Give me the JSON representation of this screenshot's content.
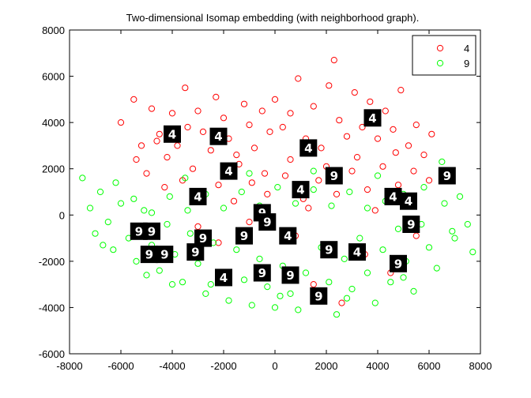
{
  "colors": {
    "series_4": "#ff0000",
    "series_9": "#00ff00",
    "thumbnail_bg": "#000000",
    "thumbnail_digit": "#ffffff",
    "axis": "#000000",
    "background": "#ffffff"
  },
  "chart_data": {
    "type": "scatter",
    "title": "Two-dimensional Isomap embedding (with neighborhood graph).",
    "xlabel": "",
    "ylabel": "",
    "xlim": [
      -8000,
      8000
    ],
    "ylim": [
      -6000,
      8000
    ],
    "grid": false,
    "legend_position": "top-right",
    "marker": "open-circle",
    "xticks": [
      -8000,
      -6000,
      -4000,
      -2000,
      0,
      2000,
      4000,
      6000,
      8000
    ],
    "yticks": [
      -6000,
      -4000,
      -2000,
      0,
      2000,
      4000,
      6000,
      8000
    ],
    "legend": [
      "4",
      "9"
    ],
    "series": [
      {
        "name": "4",
        "color": "#ff0000",
        "points": [
          [
            -6000,
            4000
          ],
          [
            -5500,
            5000
          ],
          [
            -5200,
            3000
          ],
          [
            -4800,
            4600
          ],
          [
            -4500,
            3500
          ],
          [
            -4200,
            2500
          ],
          [
            -4000,
            4400
          ],
          [
            -3800,
            3000
          ],
          [
            -3500,
            5500
          ],
          [
            -3200,
            2000
          ],
          [
            -3000,
            4500
          ],
          [
            -2800,
            3600
          ],
          [
            -2500,
            2800
          ],
          [
            -2300,
            5100
          ],
          [
            -2000,
            4200
          ],
          [
            -1800,
            3300
          ],
          [
            -1500,
            2600
          ],
          [
            -1200,
            4800
          ],
          [
            -1000,
            3900
          ],
          [
            -800,
            2900
          ],
          [
            -500,
            4500
          ],
          [
            -200,
            3600
          ],
          [
            0,
            5000
          ],
          [
            300,
            3800
          ],
          [
            600,
            4400
          ],
          [
            900,
            5900
          ],
          [
            1200,
            3300
          ],
          [
            1500,
            4700
          ],
          [
            1800,
            2900
          ],
          [
            2100,
            5600
          ],
          [
            2300,
            6700
          ],
          [
            2500,
            4100
          ],
          [
            2800,
            3400
          ],
          [
            3100,
            5300
          ],
          [
            3400,
            3800
          ],
          [
            3700,
            4900
          ],
          [
            4000,
            3300
          ],
          [
            4300,
            4500
          ],
          [
            4600,
            3700
          ],
          [
            4900,
            5400
          ],
          [
            5200,
            3000
          ],
          [
            5500,
            3900
          ],
          [
            5800,
            2600
          ],
          [
            6100,
            3500
          ],
          [
            -5000,
            1800
          ],
          [
            -4300,
            1200
          ],
          [
            -3600,
            1500
          ],
          [
            -2900,
            800
          ],
          [
            -2200,
            1300
          ],
          [
            -1600,
            600
          ],
          [
            -900,
            1400
          ],
          [
            -300,
            900
          ],
          [
            400,
            1700
          ],
          [
            1100,
            700
          ],
          [
            1700,
            1500
          ],
          [
            2400,
            900
          ],
          [
            3000,
            1900
          ],
          [
            3600,
            1100
          ],
          [
            4200,
            2100
          ],
          [
            4800,
            1300
          ],
          [
            5400,
            1900
          ],
          [
            -3000,
            -500
          ],
          [
            -1000,
            -300
          ],
          [
            800,
            -900
          ],
          [
            2000,
            -1300
          ],
          [
            3500,
            -1700
          ],
          [
            4500,
            -2500
          ],
          [
            1500,
            -3000
          ],
          [
            -500,
            -2700
          ],
          [
            5500,
            -900
          ],
          [
            2600,
            -3800
          ],
          [
            -2200,
            -1200
          ],
          [
            3200,
            2500
          ],
          [
            -1400,
            2200
          ],
          [
            600,
            2400
          ],
          [
            2000,
            2100
          ],
          [
            -4600,
            3200
          ],
          [
            4700,
            2700
          ],
          [
            -5400,
            2400
          ],
          [
            6000,
            1500
          ],
          [
            3900,
            200
          ],
          [
            1300,
            300
          ],
          [
            -400,
            1800
          ],
          [
            -3400,
            3800
          ]
        ]
      },
      {
        "name": "9",
        "color": "#00ff00",
        "points": [
          [
            -7500,
            1600
          ],
          [
            -7200,
            300
          ],
          [
            -7000,
            -800
          ],
          [
            -6800,
            1000
          ],
          [
            -6500,
            -300
          ],
          [
            -6300,
            -1500
          ],
          [
            -6000,
            500
          ],
          [
            -5700,
            -1000
          ],
          [
            -5400,
            -2000
          ],
          [
            -5100,
            200
          ],
          [
            -4800,
            -1300
          ],
          [
            -4500,
            -2400
          ],
          [
            -4200,
            -400
          ],
          [
            -3900,
            -1700
          ],
          [
            -3600,
            -2900
          ],
          [
            -3300,
            -800
          ],
          [
            -3000,
            -2100
          ],
          [
            -2700,
            -3400
          ],
          [
            -2400,
            -1200
          ],
          [
            -2100,
            -2600
          ],
          [
            -1800,
            -3700
          ],
          [
            -1500,
            -1500
          ],
          [
            -1200,
            -2800
          ],
          [
            -900,
            -3900
          ],
          [
            -600,
            -1900
          ],
          [
            -300,
            -3100
          ],
          [
            0,
            -4000
          ],
          [
            300,
            -2200
          ],
          [
            600,
            -3400
          ],
          [
            900,
            -4100
          ],
          [
            1200,
            -2500
          ],
          [
            1500,
            -3600
          ],
          [
            1800,
            -1400
          ],
          [
            2100,
            -2900
          ],
          [
            2400,
            -4300
          ],
          [
            2700,
            -1900
          ],
          [
            3000,
            -3200
          ],
          [
            3300,
            -1000
          ],
          [
            3600,
            -2500
          ],
          [
            3900,
            -3800
          ],
          [
            4200,
            -1500
          ],
          [
            4500,
            -2900
          ],
          [
            4800,
            -600
          ],
          [
            5100,
            -2000
          ],
          [
            5400,
            -3300
          ],
          [
            5700,
            -400
          ],
          [
            6000,
            -1400
          ],
          [
            6300,
            -2300
          ],
          [
            6600,
            500
          ],
          [
            6900,
            -700
          ],
          [
            7200,
            800
          ],
          [
            7500,
            -400
          ],
          [
            7700,
            -1600
          ],
          [
            6500,
            2300
          ],
          [
            5800,
            1200
          ],
          [
            5000,
            900
          ],
          [
            4300,
            600
          ],
          [
            3600,
            300
          ],
          [
            2900,
            1000
          ],
          [
            2200,
            400
          ],
          [
            1500,
            1100
          ],
          [
            800,
            500
          ],
          [
            100,
            1200
          ],
          [
            -600,
            400
          ],
          [
            -1300,
            1000
          ],
          [
            -2000,
            300
          ],
          [
            -2700,
            900
          ],
          [
            -3400,
            200
          ],
          [
            -4100,
            800
          ],
          [
            -4800,
            100
          ],
          [
            -5500,
            700
          ],
          [
            -6200,
            1400
          ],
          [
            -3500,
            1600
          ],
          [
            -1000,
            1800
          ],
          [
            1500,
            1900
          ],
          [
            4000,
            1700
          ],
          [
            -5000,
            -2600
          ],
          [
            -2500,
            -3000
          ],
          [
            200,
            -3500
          ],
          [
            2800,
            -3600
          ],
          [
            5000,
            -2700
          ],
          [
            -6700,
            -1300
          ],
          [
            7000,
            -1000
          ],
          [
            -4000,
            -3000
          ]
        ]
      }
    ],
    "thumbnails": [
      {
        "label": "4",
        "x": -4000,
        "y": 3500
      },
      {
        "label": "4",
        "x": -2200,
        "y": 3400
      },
      {
        "label": "4",
        "x": 3800,
        "y": 4200
      },
      {
        "label": "4",
        "x": 1300,
        "y": 2900
      },
      {
        "label": "9",
        "x": 2300,
        "y": 1700
      },
      {
        "label": "9",
        "x": 6700,
        "y": 1700
      },
      {
        "label": "4",
        "x": -1800,
        "y": 1900
      },
      {
        "label": "4",
        "x": 1000,
        "y": 1100
      },
      {
        "label": "4",
        "x": -3000,
        "y": 800
      },
      {
        "label": "4",
        "x": 4600,
        "y": 800
      },
      {
        "label": "4",
        "x": 5200,
        "y": 600
      },
      {
        "label": "9",
        "x": -500,
        "y": 100
      },
      {
        "label": "9",
        "x": -300,
        "y": -300
      },
      {
        "label": "9",
        "x": 5300,
        "y": -400
      },
      {
        "label": "9",
        "x": -5300,
        "y": -700
      },
      {
        "label": "9",
        "x": -4800,
        "y": -700
      },
      {
        "label": "9",
        "x": -2800,
        "y": -1000
      },
      {
        "label": "9",
        "x": -1200,
        "y": -900
      },
      {
        "label": "4",
        "x": 500,
        "y": -900
      },
      {
        "label": "9",
        "x": 2100,
        "y": -1500
      },
      {
        "label": "4",
        "x": 3200,
        "y": -1600
      },
      {
        "label": "9",
        "x": -4900,
        "y": -1700
      },
      {
        "label": "9",
        "x": -4300,
        "y": -1700
      },
      {
        "label": "9",
        "x": -3100,
        "y": -1600
      },
      {
        "label": "9",
        "x": 4800,
        "y": -2100
      },
      {
        "label": "9",
        "x": -500,
        "y": -2500
      },
      {
        "label": "9",
        "x": 600,
        "y": -2600
      },
      {
        "label": "4",
        "x": -2000,
        "y": -2700
      },
      {
        "label": "9",
        "x": 1700,
        "y": -3500
      }
    ]
  }
}
